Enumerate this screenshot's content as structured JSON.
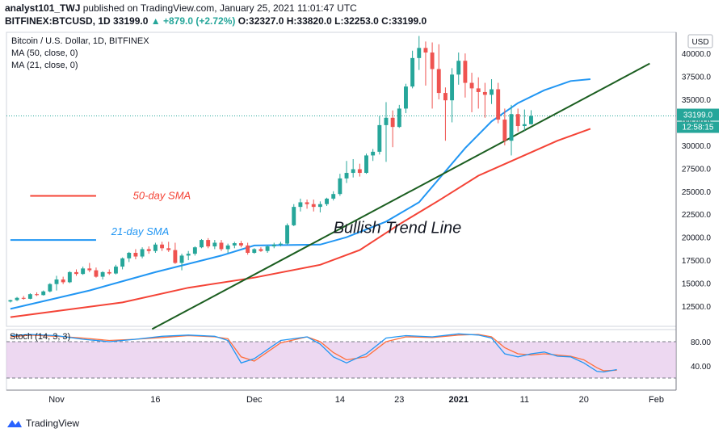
{
  "header": {
    "publisher": "analyst101_TWJ",
    "published_text": "published on TradingView.com, January 25, 2021 11:01:47 UTC",
    "symbol": "BITFINEX:BTCUSD, 1D",
    "last": "33199.0",
    "change": "▲ +879.0 (+2.72%)",
    "ohlc": "O:32327.0 H:33820.0 L:32253.0 C:33199.0"
  },
  "footer": {
    "brand": "TradingView"
  },
  "colors": {
    "up": "#26a69a",
    "down": "#ef5350",
    "ma21": "#2196f3",
    "ma50": "#f44336",
    "trend": "#1b5e20",
    "stoch_k": "#2196f3",
    "stoch_d": "#ff6f3c",
    "stoch_band": "#e1bee7"
  },
  "chart_data": {
    "type": "candlestick",
    "legend": [
      "Bitcoin / U.S. Dollar, 1D, BITFINEX",
      "MA (50, close, 0)",
      "MA (21, close, 0)"
    ],
    "currency": "USD",
    "price_axis": {
      "ticks": [
        12500,
        15000,
        17500,
        20000,
        22500,
        25000,
        27500,
        30000,
        32500,
        35000,
        37500,
        40000
      ],
      "tick_labels": [
        "12500.0",
        "15000.0",
        "17500.0",
        "20000.0",
        "22500.0",
        "25000.0",
        "27500.0",
        "30000.0",
        "32500.0",
        "35000.0",
        "37500.0",
        "40000.0"
      ],
      "ylim": [
        10300,
        42300
      ]
    },
    "last_price_label": "33199.0",
    "countdown_label": "12:58:15",
    "x_axis": {
      "labels": [
        "Nov",
        "16",
        "Dec",
        "14",
        "23",
        "2021",
        "11",
        "20",
        "Feb"
      ],
      "label_days": [
        0,
        15,
        30,
        43,
        52,
        61,
        71,
        80,
        91
      ],
      "xlim": [
        -7.6,
        94
      ]
    },
    "candles": [
      [
        13000,
        13200,
        12900,
        13150
      ],
      [
        13150,
        13500,
        13050,
        13400
      ],
      [
        13400,
        13600,
        13200,
        13300
      ],
      [
        13300,
        13900,
        13250,
        13800
      ],
      [
        13800,
        14000,
        13600,
        13700
      ],
      [
        13700,
        14200,
        13650,
        14100
      ],
      [
        14100,
        15000,
        14000,
        14900
      ],
      [
        14900,
        15800,
        14200,
        15400
      ],
      [
        15400,
        15700,
        14900,
        15100
      ],
      [
        15100,
        16300,
        15000,
        16200
      ],
      [
        16200,
        16500,
        15800,
        16000
      ],
      [
        16000,
        16800,
        15900,
        16600
      ],
      [
        16600,
        17200,
        16200,
        16400
      ],
      [
        16400,
        16700,
        15600,
        15700
      ],
      [
        15700,
        16300,
        15400,
        16200
      ],
      [
        16200,
        16500,
        15900,
        16050
      ],
      [
        16050,
        17000,
        15950,
        16800
      ],
      [
        16800,
        17800,
        16500,
        17700
      ],
      [
        17700,
        18400,
        17300,
        18300
      ],
      [
        18300,
        18700,
        17600,
        17900
      ],
      [
        17900,
        18900,
        17700,
        18700
      ],
      [
        18700,
        19000,
        18200,
        18500
      ],
      [
        18500,
        19400,
        18300,
        19200
      ],
      [
        19200,
        19500,
        18500,
        18800
      ],
      [
        18800,
        19500,
        18400,
        18600
      ],
      [
        18600,
        19400,
        17100,
        17200
      ],
      [
        17200,
        18200,
        16400,
        18000
      ],
      [
        18000,
        18500,
        17500,
        18200
      ],
      [
        18200,
        19000,
        18000,
        18900
      ],
      [
        18900,
        19800,
        18800,
        19700
      ],
      [
        19700,
        19900,
        18800,
        19000
      ],
      [
        19000,
        19700,
        18700,
        19400
      ],
      [
        19400,
        19700,
        18500,
        18700
      ],
      [
        18700,
        19300,
        18300,
        19100
      ],
      [
        19100,
        19500,
        18800,
        19350
      ],
      [
        19350,
        19600,
        18900,
        19100
      ],
      [
        19100,
        19400,
        18100,
        18300
      ],
      [
        18300,
        18800,
        18200,
        18700
      ],
      [
        18700,
        18900,
        18400,
        18500
      ],
      [
        18500,
        19100,
        18300,
        19000
      ],
      [
        19000,
        19400,
        18800,
        19200
      ],
      [
        19200,
        19500,
        19000,
        19300
      ],
      [
        19300,
        21500,
        19200,
        21300
      ],
      [
        21300,
        23600,
        21200,
        23300
      ],
      [
        23300,
        24200,
        22800,
        23800
      ],
      [
        23800,
        24100,
        23100,
        23600
      ],
      [
        23600,
        24100,
        22800,
        23300
      ],
      [
        23300,
        23900,
        22700,
        23600
      ],
      [
        23600,
        24300,
        23400,
        24200
      ],
      [
        24200,
        25000,
        24000,
        24700
      ],
      [
        24700,
        26900,
        24500,
        26400
      ],
      [
        26400,
        28300,
        25900,
        27000
      ],
      [
        27000,
        28500,
        26500,
        27400
      ],
      [
        27400,
        28000,
        26600,
        27000
      ],
      [
        27000,
        29100,
        26900,
        28900
      ],
      [
        28900,
        29600,
        28300,
        29300
      ],
      [
        29300,
        33200,
        29000,
        32200
      ],
      [
        32200,
        34700,
        28200,
        33000
      ],
      [
        33000,
        33800,
        29800,
        32000
      ],
      [
        32000,
        34400,
        31900,
        34000
      ],
      [
        34000,
        36700,
        33500,
        36400
      ],
      [
        36400,
        40300,
        36200,
        39500
      ],
      [
        39500,
        41900,
        38200,
        40600
      ],
      [
        40600,
        41300,
        36500,
        40100
      ],
      [
        40100,
        41200,
        34000,
        38300
      ],
      [
        38300,
        41000,
        35000,
        35700
      ],
      [
        35700,
        36300,
        30500,
        34900
      ],
      [
        34900,
        38400,
        32500,
        37700
      ],
      [
        37700,
        40100,
        36600,
        39200
      ],
      [
        39200,
        40000,
        35200,
        36800
      ],
      [
        36800,
        37900,
        33600,
        36200
      ],
      [
        36200,
        37400,
        34000,
        35800
      ],
      [
        35800,
        36800,
        33000,
        35500
      ],
      [
        35500,
        37200,
        34500,
        36100
      ],
      [
        36100,
        36800,
        32400,
        32800
      ],
      [
        32800,
        34000,
        30000,
        30500
      ],
      [
        30500,
        34400,
        28900,
        33400
      ],
      [
        33400,
        34000,
        31500,
        32100
      ],
      [
        32100,
        33900,
        31600,
        32300
      ],
      [
        32300,
        33820,
        32253,
        33199
      ]
    ],
    "ma50": {
      "days": [
        -7,
        10,
        20,
        30,
        40,
        46,
        52,
        58,
        64,
        70,
        76,
        81
      ],
      "values": [
        11300,
        12900,
        14500,
        15600,
        17000,
        18600,
        21400,
        24000,
        26700,
        28600,
        30500,
        31800
      ]
    },
    "ma21": {
      "days": [
        -7,
        5,
        15,
        25,
        30,
        40,
        44,
        50,
        55,
        62,
        66,
        70,
        74,
        78,
        81
      ],
      "values": [
        12200,
        14200,
        16200,
        18000,
        19100,
        19200,
        20000,
        21700,
        23800,
        29700,
        32600,
        34600,
        36000,
        37000,
        37200
      ]
    },
    "trend_line": {
      "from": {
        "day": 14.5,
        "price": 10000
      },
      "to": {
        "day": 90,
        "price": 38900
      }
    },
    "annotations": [
      {
        "text": "50-day SMA",
        "color": "#f44336",
        "line": {
          "from_day": -4,
          "to_day": 6,
          "price": 24500
        },
        "text_at": {
          "day": 11.6,
          "price": 24500
        }
      },
      {
        "text": "21-day SMA",
        "color": "#2196f3",
        "line": {
          "from_day": -7,
          "to_day": 6,
          "price": 19700
        },
        "text_at": {
          "day": 8.3,
          "price": 20600
        }
      },
      {
        "text": "Bullish Trend Line",
        "color": "#131722",
        "text_at": {
          "day": 42,
          "price": 20800
        }
      }
    ],
    "stochastic": {
      "label": "Stoch (14, 3, 3)",
      "ticks": [
        80,
        40
      ],
      "tick_labels": [
        "80.00",
        "40.00"
      ],
      "band": [
        20,
        80
      ],
      "ylim": [
        0,
        100
      ],
      "k": {
        "days": [
          -7,
          -4,
          0,
          4,
          8,
          12,
          16,
          20,
          24,
          26,
          28,
          30,
          34,
          38,
          40,
          42,
          44,
          47,
          50,
          53,
          57,
          61,
          64,
          66,
          68,
          70,
          72,
          74,
          76,
          78,
          80,
          82,
          83,
          85
        ],
        "values": [
          90,
          92,
          90,
          84,
          80,
          84,
          89,
          91,
          89,
          82,
          45,
          52,
          82,
          88,
          76,
          55,
          45,
          60,
          86,
          90,
          88,
          93,
          91,
          86,
          60,
          55,
          60,
          63,
          56,
          55,
          45,
          31,
          30,
          34
        ]
      },
      "d": {
        "days": [
          -7,
          -4,
          0,
          4,
          8,
          12,
          16,
          20,
          24,
          26,
          28,
          30,
          34,
          38,
          40,
          42,
          44,
          47,
          50,
          53,
          57,
          61,
          64,
          66,
          68,
          70,
          72,
          74,
          76,
          78,
          80,
          82,
          83,
          85
        ],
        "values": [
          88,
          91,
          89,
          86,
          82,
          84,
          87,
          90,
          88,
          85,
          55,
          48,
          78,
          88,
          80,
          62,
          50,
          55,
          80,
          88,
          87,
          91,
          92,
          88,
          70,
          60,
          58,
          60,
          58,
          56,
          50,
          37,
          32,
          33
        ]
      }
    }
  }
}
